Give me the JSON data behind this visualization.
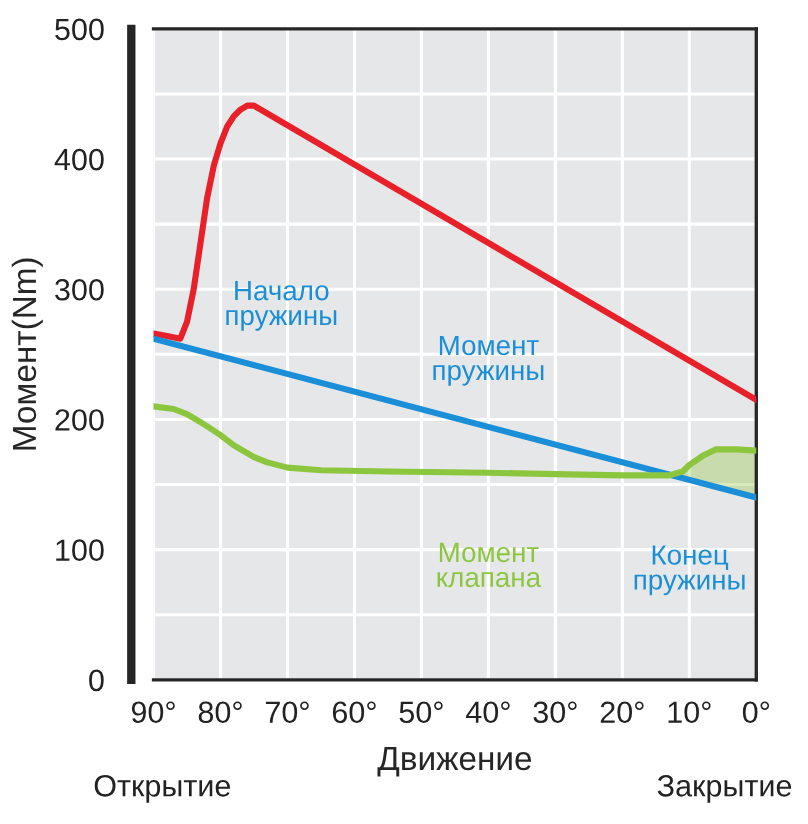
{
  "chart_data": {
    "type": "line",
    "xlabel": "Движение",
    "ylabel": "Момент(Nm)",
    "xlim": [
      90,
      0
    ],
    "ylim": [
      0,
      500
    ],
    "xticks": [
      {
        "value": 90,
        "label": "90°"
      },
      {
        "value": 80,
        "label": "80°"
      },
      {
        "value": 70,
        "label": "70°"
      },
      {
        "value": 60,
        "label": "60°"
      },
      {
        "value": 50,
        "label": "50°"
      },
      {
        "value": 40,
        "label": "40°"
      },
      {
        "value": 30,
        "label": "30°"
      },
      {
        "value": 20,
        "label": "20°"
      },
      {
        "value": 10,
        "label": "10°"
      },
      {
        "value": 0,
        "label": "0°"
      }
    ],
    "yticks": [
      0,
      {
        "value": 50,
        "label": null
      },
      100,
      {
        "value": 150,
        "label": null
      },
      200,
      {
        "value": 250,
        "label": null
      },
      300,
      {
        "value": 350,
        "label": null
      },
      400,
      {
        "value": 450,
        "label": null
      },
      500
    ],
    "grid": true,
    "line_style": "solid",
    "series": [
      {
        "color": "#e8202a",
        "x": [
          90,
          88,
          86,
          85,
          84,
          83,
          82,
          81,
          80,
          79,
          78,
          77,
          76,
          75,
          0
        ],
        "values": [
          266,
          264,
          262,
          275,
          300,
          335,
          370,
          395,
          412,
          425,
          433,
          438,
          441,
          441,
          215
        ]
      },
      {
        "name": "Момент\nпружины",
        "color": "#1a8fd8",
        "x": [
          90,
          0
        ],
        "values": [
          262,
          140
        ]
      },
      {
        "name": "Момент\nклапана",
        "color": "#8cc63f",
        "x": [
          90,
          87,
          85,
          83,
          80,
          78,
          75,
          73,
          70,
          65,
          55,
          40,
          30,
          20,
          13,
          11,
          10,
          8,
          6,
          3,
          0
        ],
        "values": [
          210,
          208,
          204,
          198,
          188,
          180,
          171,
          167,
          163,
          161,
          160,
          159,
          158,
          157,
          157,
          160,
          165,
          172,
          177,
          177,
          176
        ],
        "lower": [
          null,
          null,
          null,
          null,
          null,
          null,
          null,
          null,
          null,
          null,
          null,
          null,
          null,
          null,
          157,
          155,
          154,
          151,
          148,
          144,
          140
        ],
        "upper": [
          null,
          null,
          null,
          null,
          null,
          null,
          null,
          null,
          null,
          null,
          null,
          null,
          null,
          null,
          157,
          160,
          165,
          172,
          177,
          177,
          176
        ]
      }
    ],
    "annotations": [
      {
        "text": "Начало\nпружины",
        "x": 90,
        "y": 262
      },
      {
        "text": "Конец\nпружины",
        "x": 0,
        "y": 140
      },
      "Открытие",
      "Закрытие"
    ]
  }
}
